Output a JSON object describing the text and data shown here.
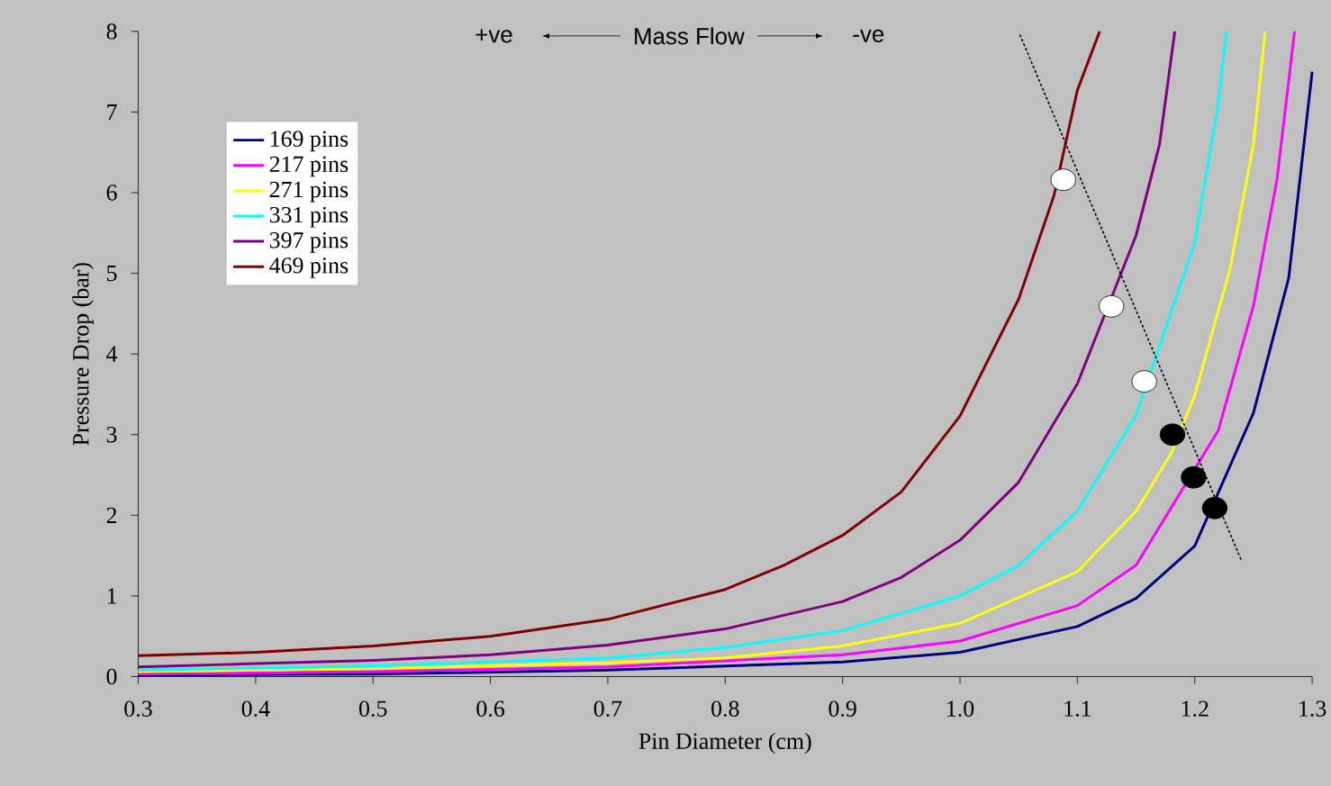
{
  "chart_data": {
    "type": "line",
    "xlabel": "Pin Diameter (cm)",
    "ylabel": "Pressure Drop (bar)",
    "annotations": [
      "+ve",
      "Mass Flow",
      "-ve"
    ],
    "xlim": [
      0.3,
      1.3
    ],
    "ylim": [
      0,
      8
    ],
    "xticks": [
      0.3,
      0.4,
      0.5,
      0.6,
      0.7,
      0.8,
      0.9,
      {
        "value": 1.0,
        "label": "1.0"
      },
      1.1,
      1.2,
      1.3
    ],
    "yticks": [
      0,
      1,
      2,
      3,
      4,
      5,
      6,
      7,
      8
    ],
    "legend": "top left",
    "marker": "none",
    "line_style": "solid",
    "series": [
      {
        "name": "169 pins",
        "color": "#000080",
        "x": [
          0.3,
          0.5,
          0.7,
          0.9,
          1.0,
          1.1,
          1.15,
          1.2,
          1.25,
          1.28,
          1.3
        ],
        "values": [
          0.02,
          0.03,
          0.08,
          0.18,
          0.3,
          0.62,
          0.97,
          1.62,
          3.27,
          4.94,
          7.5
        ]
      },
      {
        "name": "217 pins",
        "color": "#ff00ff",
        "x": [
          0.3,
          0.5,
          0.7,
          0.9,
          1.0,
          1.1,
          1.15,
          1.22,
          1.25,
          1.27,
          1.285
        ],
        "values": [
          0.03,
          0.06,
          0.12,
          0.27,
          0.44,
          0.88,
          1.38,
          3.05,
          4.6,
          6.16,
          8.0
        ]
      },
      {
        "name": "271 pins",
        "color": "#ffff00",
        "x": [
          0.3,
          0.5,
          0.7,
          0.8,
          0.9,
          1.0,
          1.1,
          1.15,
          1.18,
          1.2,
          1.23,
          1.25,
          1.26
        ],
        "values": [
          0.06,
          0.1,
          0.17,
          0.23,
          0.38,
          0.66,
          1.3,
          2.05,
          2.77,
          3.49,
          5.05,
          6.6,
          8.0
        ]
      },
      {
        "name": "331 pins",
        "color": "#00ffff",
        "x": [
          0.3,
          0.5,
          0.7,
          0.8,
          0.9,
          1.0,
          1.05,
          1.1,
          1.15,
          1.2,
          1.22,
          1.227
        ],
        "values": [
          0.08,
          0.13,
          0.23,
          0.36,
          0.57,
          1.0,
          1.38,
          2.05,
          3.24,
          5.38,
          7.1,
          8.0
        ]
      },
      {
        "name": "397 pins",
        "color": "#800080",
        "x": [
          0.3,
          0.4,
          0.5,
          0.6,
          0.7,
          0.8,
          0.9,
          0.95,
          1.0,
          1.05,
          1.1,
          1.15,
          1.17,
          1.183
        ],
        "values": [
          0.12,
          0.16,
          0.2,
          0.27,
          0.39,
          0.59,
          0.93,
          1.23,
          1.69,
          2.41,
          3.63,
          5.47,
          6.6,
          8.0
        ]
      },
      {
        "name": "469 pins",
        "color": "#800000",
        "x": [
          0.3,
          0.4,
          0.5,
          0.6,
          0.7,
          0.8,
          0.85,
          0.9,
          0.95,
          1.0,
          1.05,
          1.08,
          1.1,
          1.119
        ],
        "values": [
          0.26,
          0.3,
          0.38,
          0.5,
          0.71,
          1.08,
          1.38,
          1.75,
          2.29,
          3.23,
          4.68,
          5.96,
          7.27,
          8.0
        ]
      },
      {
        "type": "line",
        "line_style": "dotted",
        "color": "#000000",
        "x": [
          1.051,
          1.24
        ],
        "values": [
          7.96,
          1.43
        ]
      },
      {
        "type": "scatter",
        "color": "#ffffff",
        "x": [
          1.088,
          1.129,
          1.157
        ],
        "values": [
          6.16,
          4.59,
          3.66
        ]
      },
      {
        "type": "scatter",
        "color": "#000000",
        "x": [
          1.181,
          1.199,
          1.217
        ],
        "values": [
          3.0,
          2.47,
          2.09
        ]
      }
    ]
  }
}
